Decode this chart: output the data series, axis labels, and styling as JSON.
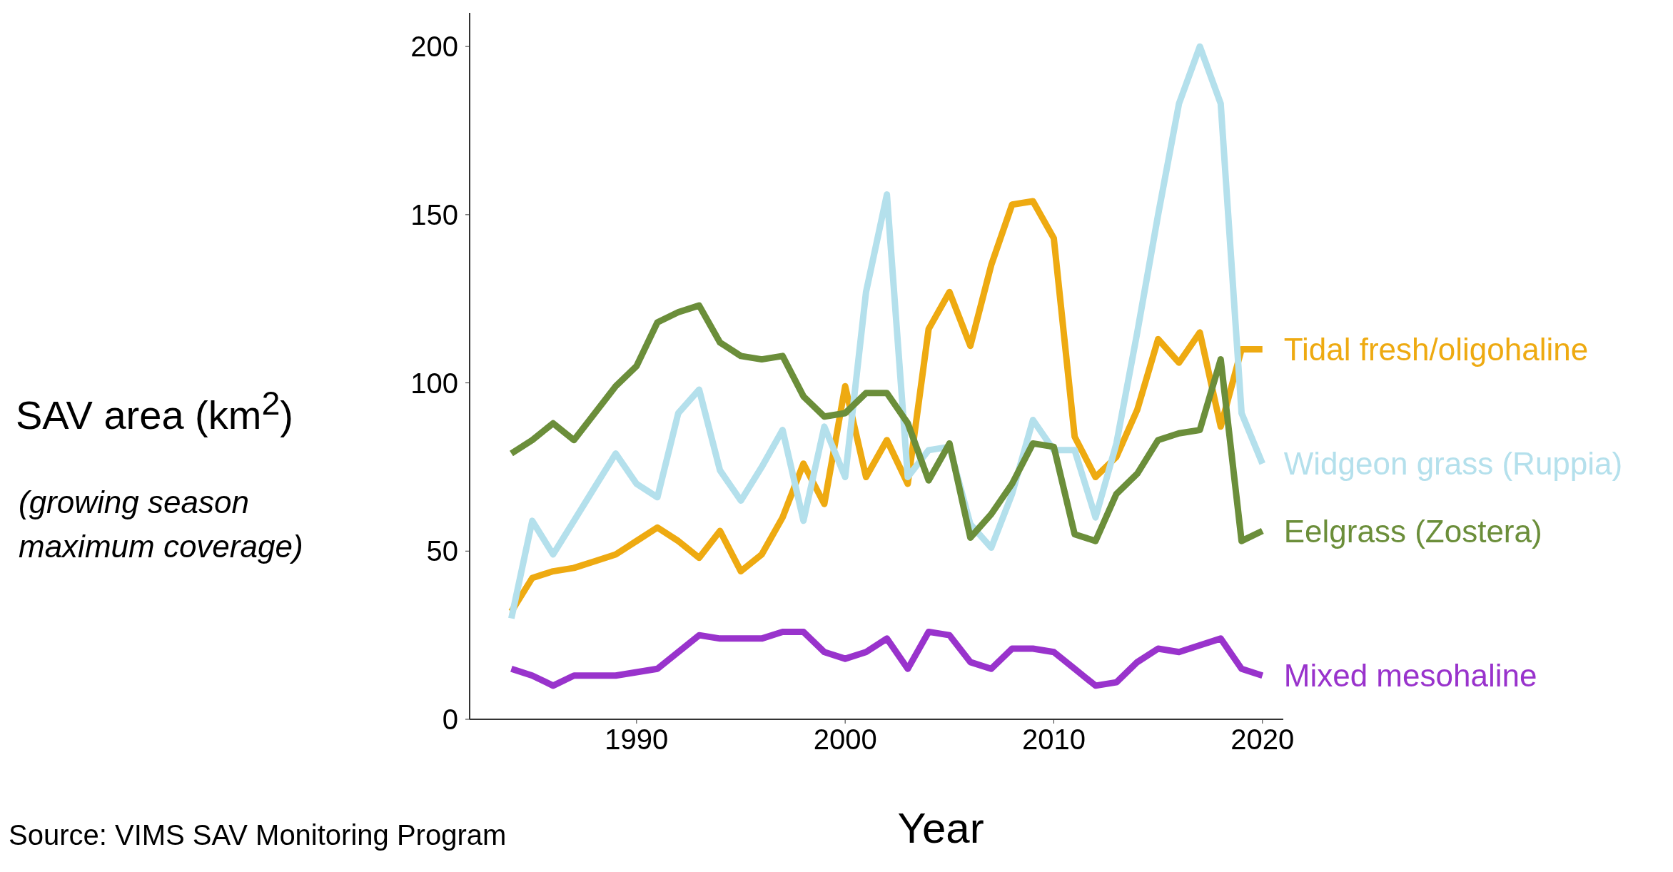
{
  "chart_data": {
    "type": "line",
    "xlabel": "Year",
    "ylabel": "SAV area (km$^{2}$)",
    "annotations": [
      "(growing season maximum coverage)",
      "Source: VIMS SAV Monitoring Program"
    ],
    "x": [
      1984,
      1985,
      1986,
      1987,
      1988,
      1989,
      1990,
      1991,
      1992,
      1993,
      1994,
      1995,
      1996,
      1997,
      1998,
      1999,
      2000,
      2001,
      2002,
      2003,
      2004,
      2005,
      2006,
      2007,
      2008,
      2009,
      2010,
      2011,
      2012,
      2013,
      2014,
      2015,
      2016,
      2017,
      2018,
      2019,
      2020
    ],
    "series": [
      {
        "name": "Tidal fresh/oligohaline",
        "color": "#eeaa11",
        "values": [
          32,
          42,
          44,
          45,
          47,
          49,
          53,
          57,
          53,
          48,
          56,
          44,
          49,
          60,
          76,
          64,
          99,
          72,
          83,
          70,
          116,
          127,
          111,
          135,
          153,
          154,
          143,
          84,
          72,
          78,
          92,
          113,
          106,
          115,
          87,
          110,
          110
        ]
      },
      {
        "name": "Widgeon grass (Ruppia)",
        "color": "#b4e0ec",
        "values": [
          30,
          59,
          49,
          59,
          69,
          79,
          70,
          66,
          91,
          98,
          74,
          65,
          75,
          86,
          59,
          87,
          72,
          127,
          156,
          72,
          80,
          81,
          58,
          51,
          67,
          89,
          80,
          80,
          60,
          82,
          115,
          150,
          183,
          200,
          183,
          91,
          76
        ]
      },
      {
        "name": "Eelgrass (Zostera)",
        "color": "#6b8e3a",
        "values": [
          79,
          83,
          88,
          83,
          91,
          99,
          105,
          118,
          121,
          123,
          112,
          108,
          107,
          108,
          96,
          90,
          91,
          97,
          97,
          88,
          71,
          82,
          54,
          61,
          70,
          82,
          81,
          55,
          53,
          67,
          73,
          83,
          85,
          86,
          107,
          53,
          56
        ]
      },
      {
        "name": "Mixed mesohaline",
        "color": "#9933cc",
        "values": [
          15,
          13,
          10,
          13,
          13,
          13,
          14,
          15,
          20,
          25,
          24,
          24,
          24,
          26,
          26,
          20,
          18,
          20,
          24,
          15,
          26,
          25,
          17,
          15,
          21,
          21,
          20,
          15,
          10,
          11,
          17,
          21,
          20,
          22,
          24,
          15,
          13
        ]
      }
    ],
    "xlim": [
      1982,
      2021
    ],
    "xticks": [
      1990,
      2000,
      2010,
      2020
    ],
    "ylim": [
      0,
      210
    ],
    "yticks": [
      0,
      50,
      100,
      150,
      200
    ],
    "grid": false,
    "legend": false,
    "marker": "none",
    "line_style": "solid"
  }
}
